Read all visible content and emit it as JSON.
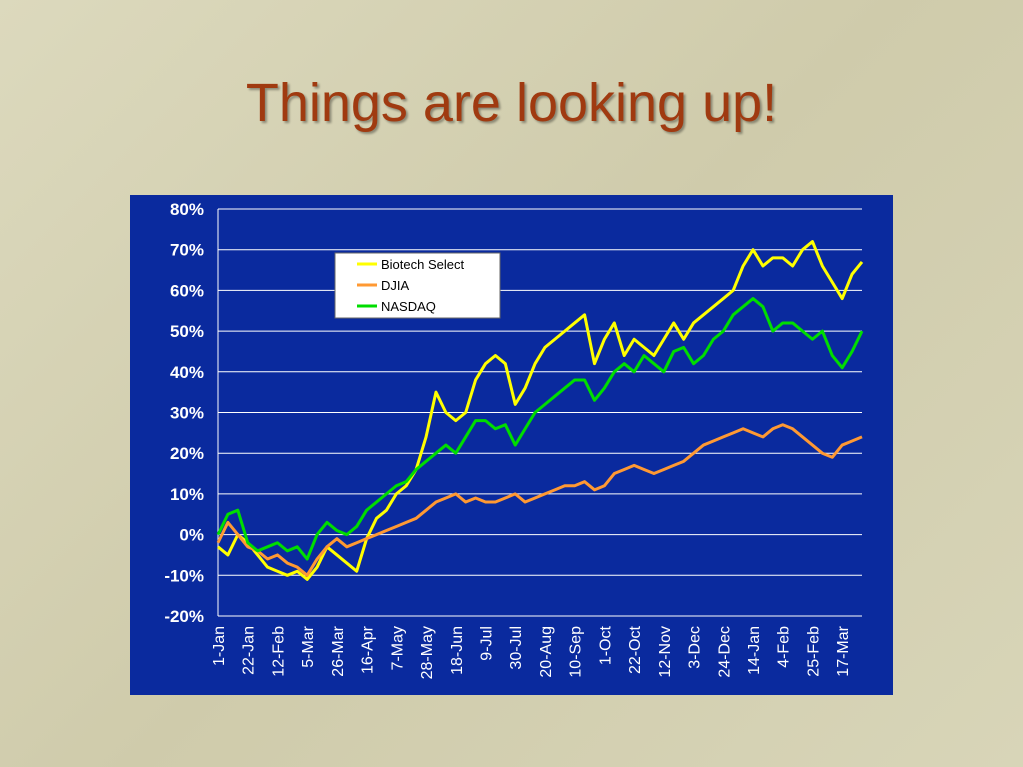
{
  "chart_data": {
    "type": "line",
    "title": "Things are looking up!",
    "categories": [
      "1-Jan",
      null,
      null,
      "22-Jan",
      null,
      null,
      "12-Feb",
      null,
      null,
      "5-Mar",
      null,
      null,
      "26-Mar",
      null,
      null,
      "16-Apr",
      null,
      null,
      "7-May",
      null,
      null,
      "28-May",
      null,
      null,
      "18-Jun",
      null,
      null,
      "9-Jul",
      null,
      null,
      "30-Jul",
      null,
      null,
      "20-Aug",
      null,
      null,
      "10-Sep",
      null,
      null,
      "1-Oct",
      null,
      null,
      "22-Oct",
      null,
      null,
      "12-Nov",
      null,
      null,
      "3-Dec",
      null,
      null,
      "24-Dec",
      null,
      null,
      "14-Jan",
      null,
      null,
      "4-Feb",
      null,
      null,
      "25-Feb",
      null,
      null,
      "17-Mar",
      null,
      null
    ],
    "series": [
      {
        "name": "Biotech Select",
        "color": "#ffff00",
        "values": [
          -3,
          -5,
          0,
          -2,
          -5,
          -8,
          -9,
          -10,
          -9,
          -11,
          -8,
          -3,
          -5,
          -7,
          -9,
          -1,
          4,
          6,
          10,
          12,
          16,
          24,
          35,
          30,
          28,
          30,
          38,
          42,
          44,
          42,
          32,
          36,
          42,
          46,
          48,
          50,
          52,
          54,
          42,
          48,
          52,
          44,
          48,
          46,
          44,
          48,
          52,
          48,
          52,
          54,
          56,
          58,
          60,
          66,
          70,
          66,
          68,
          68,
          66,
          70,
          72,
          66,
          62,
          58,
          64,
          67
        ]
      },
      {
        "name": "DJIA",
        "color": "#ff9933",
        "values": [
          -2,
          3,
          0,
          -3,
          -4,
          -6,
          -5,
          -7,
          -8,
          -10,
          -6,
          -3,
          -1,
          -3,
          -2,
          -1,
          0,
          1,
          2,
          3,
          4,
          6,
          8,
          9,
          10,
          8,
          9,
          8,
          8,
          9,
          10,
          8,
          9,
          10,
          11,
          12,
          12,
          13,
          11,
          12,
          15,
          16,
          17,
          16,
          15,
          16,
          17,
          18,
          20,
          22,
          23,
          24,
          25,
          26,
          25,
          24,
          26,
          27,
          26,
          24,
          22,
          20,
          19,
          22,
          23,
          24
        ]
      },
      {
        "name": "NASDAQ",
        "color": "#00dd00",
        "values": [
          0,
          5,
          6,
          -2,
          -4,
          -3,
          -2,
          -4,
          -3,
          -6,
          0,
          3,
          1,
          0,
          2,
          6,
          8,
          10,
          12,
          13,
          16,
          18,
          20,
          22,
          20,
          24,
          28,
          28,
          26,
          27,
          22,
          26,
          30,
          32,
          34,
          36,
          38,
          38,
          33,
          36,
          40,
          42,
          40,
          44,
          42,
          40,
          45,
          46,
          42,
          44,
          48,
          50,
          54,
          56,
          58,
          56,
          50,
          52,
          52,
          50,
          48,
          50,
          44,
          41,
          45,
          50
        ]
      }
    ],
    "ylim": [
      -20,
      80
    ],
    "yticks": [
      {
        "value": -20,
        "label": "-20%"
      },
      {
        "value": -10,
        "label": "-10%"
      },
      {
        "value": 0,
        "label": "0%"
      },
      {
        "value": 10,
        "label": "10%"
      },
      {
        "value": 20,
        "label": "20%"
      },
      {
        "value": 30,
        "label": "30%"
      },
      {
        "value": 40,
        "label": "40%"
      },
      {
        "value": 50,
        "label": "50%"
      },
      {
        "value": 60,
        "label": "60%"
      },
      {
        "value": 70,
        "label": "70%"
      },
      {
        "value": 80,
        "label": "80%"
      }
    ],
    "grid": true,
    "legend": "top-left"
  }
}
